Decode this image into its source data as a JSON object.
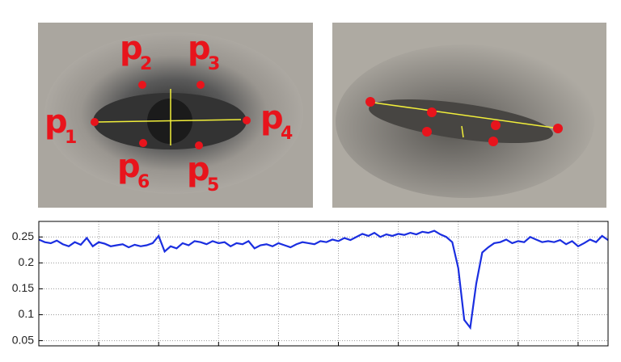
{
  "landmarks": [
    {
      "letter": "p",
      "sub": "1"
    },
    {
      "letter": "p",
      "sub": "2"
    },
    {
      "letter": "p",
      "sub": "3"
    },
    {
      "letter": "p",
      "sub": "4"
    },
    {
      "letter": "p",
      "sub": "5"
    },
    {
      "letter": "p",
      "sub": "6"
    }
  ],
  "chart_data": {
    "type": "line",
    "color": "#1a2ee0",
    "grid": true,
    "xlim": [
      0,
      95
    ],
    "xticks": [
      10,
      20,
      30,
      40,
      50,
      60,
      70,
      80,
      90
    ],
    "ylim": [
      0.04,
      0.28
    ],
    "yticks": [
      0.05,
      0.1,
      0.15,
      0.2,
      0.25
    ],
    "values": [
      0.245,
      0.24,
      0.238,
      0.243,
      0.236,
      0.232,
      0.24,
      0.235,
      0.248,
      0.232,
      0.24,
      0.237,
      0.232,
      0.234,
      0.236,
      0.23,
      0.235,
      0.232,
      0.234,
      0.238,
      0.252,
      0.222,
      0.232,
      0.228,
      0.238,
      0.234,
      0.242,
      0.24,
      0.236,
      0.242,
      0.238,
      0.24,
      0.232,
      0.238,
      0.236,
      0.242,
      0.228,
      0.234,
      0.236,
      0.232,
      0.238,
      0.234,
      0.23,
      0.236,
      0.24,
      0.238,
      0.236,
      0.242,
      0.24,
      0.245,
      0.242,
      0.248,
      0.244,
      0.25,
      0.256,
      0.252,
      0.258,
      0.25,
      0.255,
      0.252,
      0.256,
      0.254,
      0.258,
      0.255,
      0.26,
      0.258,
      0.262,
      0.255,
      0.25,
      0.24,
      0.19,
      0.09,
      0.075,
      0.16,
      0.22,
      0.23,
      0.238,
      0.24,
      0.245,
      0.238,
      0.242,
      0.24,
      0.25,
      0.245,
      0.24,
      0.242,
      0.24,
      0.244,
      0.236,
      0.242,
      0.232,
      0.238,
      0.245,
      0.24,
      0.252,
      0.244
    ]
  }
}
